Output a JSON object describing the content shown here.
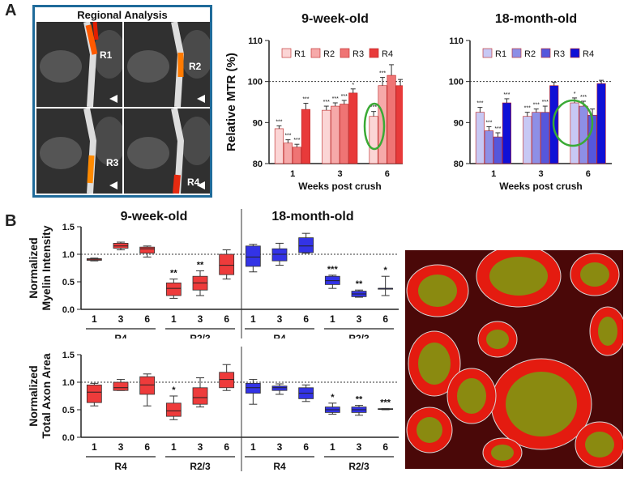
{
  "panel_labels": {
    "a": "A",
    "b": "B"
  },
  "mri": {
    "title": "Regional Analysis",
    "labels": [
      "R1",
      "R2",
      "R3",
      "R4"
    ]
  },
  "chart_data": [
    {
      "id": "mtr-9w",
      "type": "bar",
      "title": "9-week-old",
      "ylabel": "Relative MTR (%)",
      "xlabel": "Weeks post crush",
      "ylim": [
        80,
        110
      ],
      "yticks": [
        80,
        90,
        100,
        110
      ],
      "reference_line": 100,
      "categories": [
        "1",
        "3",
        "6"
      ],
      "series": [
        {
          "name": "R1",
          "color": "#fbd5d5",
          "values": [
            88.5,
            93.0,
            91.5
          ],
          "errors": [
            0.7,
            1.0,
            1.2
          ]
        },
        {
          "name": "R2",
          "color": "#f6a9a9",
          "values": [
            85.0,
            94.0,
            99.0
          ],
          "errors": [
            0.8,
            0.8,
            2.0
          ]
        },
        {
          "name": "R3",
          "color": "#ef7474",
          "values": [
            84.0,
            94.5,
            101.5
          ],
          "errors": [
            0.7,
            0.9,
            2.6
          ]
        },
        {
          "name": "R4",
          "color": "#e83a3a",
          "values": [
            93.2,
            97.2,
            99.0
          ],
          "errors": [
            1.5,
            1.0,
            1.5
          ]
        }
      ],
      "annotations": [
        [
          "***",
          "***",
          "***"
        ],
        [
          "***",
          "***",
          "***"
        ],
        [
          "***",
          "***",
          ""
        ],
        [
          "***",
          "*",
          ""
        ]
      ],
      "highlight": "week 6, R1"
    },
    {
      "id": "mtr-18m",
      "type": "bar",
      "title": "18-month-old",
      "ylabel": "",
      "xlabel": "Weeks post crush",
      "ylim": [
        80,
        110
      ],
      "yticks": [
        80,
        90,
        100,
        110
      ],
      "reference_line": 100,
      "categories": [
        "1",
        "3",
        "6"
      ],
      "series": [
        {
          "name": "R1",
          "color": "#c7c8f4",
          "values": [
            92.5,
            91.5,
            94.8
          ],
          "errors": [
            1.2,
            1.0,
            1.2
          ]
        },
        {
          "name": "R2",
          "color": "#8d8fe6",
          "values": [
            88.0,
            92.5,
            94.0
          ],
          "errors": [
            1.0,
            0.8,
            1.2
          ]
        },
        {
          "name": "R3",
          "color": "#5557dc",
          "values": [
            86.5,
            92.5,
            91.8
          ],
          "errors": [
            1.0,
            1.5,
            1.5
          ]
        },
        {
          "name": "R4",
          "color": "#1010d6",
          "values": [
            94.8,
            99.0,
            99.5
          ],
          "errors": [
            1.0,
            0.8,
            0.8
          ]
        }
      ],
      "annotations": [
        [
          "***",
          "***",
          "*"
        ],
        [
          "***",
          "***",
          "***"
        ],
        [
          "***",
          "***",
          ""
        ],
        [
          "***",
          "",
          ""
        ]
      ],
      "highlight": "week 6, R1–R2"
    },
    {
      "id": "myelin",
      "type": "box",
      "ylabel": [
        "Normalized",
        "Myelin Intensity"
      ],
      "ylim": [
        0,
        1.5
      ],
      "yticks": [
        "0.0",
        "0.5",
        "1.0",
        "1.5"
      ],
      "reference_line": 1.0,
      "group_titles": [
        "9-week-old",
        "18-month-old"
      ],
      "region_labels": [
        "R4",
        "R2/3",
        "R4",
        "R2/3"
      ],
      "x_labels": [
        "1",
        "3",
        "6",
        "1",
        "3",
        "6",
        "1",
        "3",
        "6",
        "1",
        "3",
        "6"
      ],
      "boxes": [
        {
          "min": 0.88,
          "q1": 0.89,
          "median": 0.91,
          "q3": 0.92,
          "max": 0.93,
          "group": 0
        },
        {
          "min": 1.08,
          "q1": 1.11,
          "median": 1.15,
          "q3": 1.2,
          "max": 1.22,
          "group": 0
        },
        {
          "min": 0.95,
          "q1": 1.02,
          "median": 1.1,
          "q3": 1.13,
          "max": 1.15,
          "group": 0
        },
        {
          "min": 0.2,
          "q1": 0.25,
          "median": 0.38,
          "q3": 0.48,
          "max": 0.55,
          "group": 0
        },
        {
          "min": 0.25,
          "q1": 0.35,
          "median": 0.48,
          "q3": 0.6,
          "max": 0.7,
          "group": 0
        },
        {
          "min": 0.55,
          "q1": 0.63,
          "median": 0.8,
          "q3": 1.0,
          "max": 1.08,
          "group": 0
        },
        {
          "min": 0.68,
          "q1": 0.78,
          "median": 0.95,
          "q3": 1.15,
          "max": 1.18,
          "group": 1
        },
        {
          "min": 0.8,
          "q1": 0.88,
          "median": 1.0,
          "q3": 1.1,
          "max": 1.2,
          "group": 1
        },
        {
          "min": 1.02,
          "q1": 1.03,
          "median": 1.15,
          "q3": 1.3,
          "max": 1.38,
          "group": 1
        },
        {
          "min": 0.38,
          "q1": 0.45,
          "median": 0.52,
          "q3": 0.6,
          "max": 0.62,
          "group": 1
        },
        {
          "min": 0.22,
          "q1": 0.23,
          "median": 0.28,
          "q3": 0.33,
          "max": 0.35,
          "group": 1
        },
        {
          "min": 0.25,
          "q1": 0.38,
          "median": 0.38,
          "q3": 0.38,
          "max": 0.6,
          "group": 1
        }
      ],
      "significance": [
        "",
        "",
        "",
        "**",
        "**",
        "",
        "",
        "",
        "",
        "***",
        "**",
        "*"
      ]
    },
    {
      "id": "axon",
      "type": "box",
      "ylabel": [
        "Normalized",
        "Total Axon Area"
      ],
      "ylim": [
        0,
        1.5
      ],
      "yticks": [
        "0.0",
        "0.5",
        "1.0",
        "1.5"
      ],
      "reference_line": 1.0,
      "region_labels": [
        "R4",
        "R2/3",
        "R4",
        "R2/3"
      ],
      "x_labels": [
        "1",
        "3",
        "6",
        "1",
        "3",
        "6",
        "1",
        "3",
        "6",
        "1",
        "3",
        "6"
      ],
      "boxes": [
        {
          "min": 0.57,
          "q1": 0.63,
          "median": 0.82,
          "q3": 0.95,
          "max": 0.98,
          "group": 0
        },
        {
          "min": 0.85,
          "q1": 0.85,
          "median": 0.9,
          "q3": 1.0,
          "max": 1.05,
          "group": 0
        },
        {
          "min": 0.57,
          "q1": 0.78,
          "median": 0.95,
          "q3": 1.1,
          "max": 1.15,
          "group": 0
        },
        {
          "min": 0.32,
          "q1": 0.38,
          "median": 0.48,
          "q3": 0.62,
          "max": 0.75,
          "group": 0
        },
        {
          "min": 0.55,
          "q1": 0.6,
          "median": 0.72,
          "q3": 0.9,
          "max": 1.08,
          "group": 0
        },
        {
          "min": 0.85,
          "q1": 0.9,
          "median": 1.05,
          "q3": 1.18,
          "max": 1.32,
          "group": 0
        },
        {
          "min": 0.6,
          "q1": 0.8,
          "median": 0.9,
          "q3": 0.98,
          "max": 1.05,
          "group": 1
        },
        {
          "min": 0.78,
          "q1": 0.85,
          "median": 0.9,
          "q3": 0.93,
          "max": 0.97,
          "group": 1
        },
        {
          "min": 0.65,
          "q1": 0.7,
          "median": 0.8,
          "q3": 0.9,
          "max": 0.95,
          "group": 1
        },
        {
          "min": 0.42,
          "q1": 0.45,
          "median": 0.5,
          "q3": 0.55,
          "max": 0.62,
          "group": 1
        },
        {
          "min": 0.4,
          "q1": 0.45,
          "median": 0.5,
          "q3": 0.55,
          "max": 0.58,
          "group": 1
        },
        {
          "min": 0.5,
          "q1": 0.51,
          "median": 0.51,
          "q3": 0.52,
          "max": 0.52,
          "group": 1
        }
      ],
      "significance": [
        "",
        "",
        "",
        "*",
        "",
        "",
        "",
        "",
        "",
        "*",
        "**",
        "***"
      ]
    }
  ],
  "colors": {
    "red_box": "#ee3b3b",
    "blue_box": "#3333e6",
    "highlight_circle": "#3aaa35",
    "frame": "#1f6b9a"
  }
}
